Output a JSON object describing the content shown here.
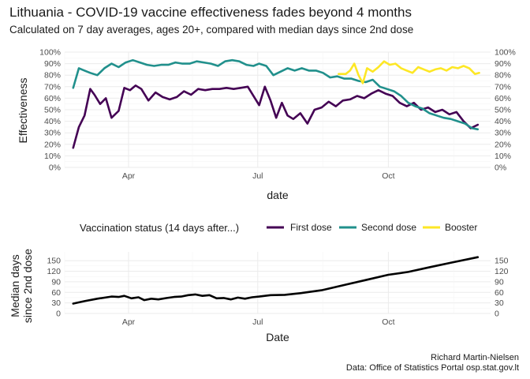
{
  "title": "Lithuania - COVID-19 vaccine effectiveness fades beyond 4 months",
  "subtitle": "Calculated on 7 day averages, ages 20+, compared with median days since 2nd dose",
  "caption_author": "Richard Martin-Nielsen",
  "caption_source": "Data: Office of Statistics Portal osp.stat.gov.lt",
  "colors": {
    "first_dose": "#440154",
    "second_dose": "#21908C",
    "booster": "#FDE725",
    "median": "#000000",
    "grid_major": "#ebebeb",
    "grid_minor": "#f5f5f5"
  },
  "chart_data": [
    {
      "type": "line",
      "ylabel": "Effectiveness",
      "xlabel": "date",
      "x_ticks": [
        "Apr",
        "Jul",
        "Oct"
      ],
      "y_ticks": [
        "0%",
        "10%",
        "20%",
        "30%",
        "40%",
        "50%",
        "60%",
        "70%",
        "80%",
        "90%",
        "100%"
      ],
      "ylim": [
        0,
        1
      ],
      "x_range": [
        "2021-02-15",
        "2021-12-12"
      ],
      "secondary_y_axis": true,
      "grid": true,
      "legend": {
        "title": "Vaccination status (14 days after...)",
        "position": "bottom",
        "entries": [
          "First dose",
          "Second dose",
          "Booster"
        ]
      },
      "series": [
        {
          "name": "First dose",
          "x": [
            "2021-02-21",
            "2021-02-25",
            "2021-03-01",
            "2021-03-05",
            "2021-03-08",
            "2021-03-12",
            "2021-03-16",
            "2021-03-20",
            "2021-03-25",
            "2021-03-29",
            "2021-04-02",
            "2021-04-06",
            "2021-04-10",
            "2021-04-15",
            "2021-04-20",
            "2021-04-25",
            "2021-04-30",
            "2021-05-05",
            "2021-05-10",
            "2021-05-15",
            "2021-05-20",
            "2021-05-25",
            "2021-05-30",
            "2021-06-04",
            "2021-06-09",
            "2021-06-14",
            "2021-06-19",
            "2021-06-24",
            "2021-06-29",
            "2021-07-02",
            "2021-07-06",
            "2021-07-10",
            "2021-07-14",
            "2021-07-18",
            "2021-07-22",
            "2021-07-26",
            "2021-07-31",
            "2021-08-05",
            "2021-08-10",
            "2021-08-15",
            "2021-08-20",
            "2021-08-25",
            "2021-08-30",
            "2021-09-04",
            "2021-09-09",
            "2021-09-14",
            "2021-09-19",
            "2021-09-24",
            "2021-09-29",
            "2021-10-04",
            "2021-10-09",
            "2021-10-14",
            "2021-10-19",
            "2021-10-24",
            "2021-10-29",
            "2021-11-03",
            "2021-11-08",
            "2021-11-13",
            "2021-11-18",
            "2021-11-23",
            "2021-11-28",
            "2021-12-03"
          ],
          "values": [
            0.17,
            0.35,
            0.45,
            0.68,
            0.63,
            0.55,
            0.6,
            0.43,
            0.49,
            0.69,
            0.67,
            0.71,
            0.68,
            0.58,
            0.65,
            0.61,
            0.59,
            0.61,
            0.66,
            0.63,
            0.68,
            0.67,
            0.68,
            0.68,
            0.69,
            0.68,
            0.69,
            0.7,
            0.6,
            0.54,
            0.7,
            0.58,
            0.43,
            0.56,
            0.45,
            0.42,
            0.47,
            0.38,
            0.5,
            0.52,
            0.57,
            0.53,
            0.58,
            0.59,
            0.62,
            0.6,
            0.64,
            0.67,
            0.64,
            0.62,
            0.56,
            0.53,
            0.56,
            0.5,
            0.52,
            0.48,
            0.5,
            0.46,
            0.48,
            0.4,
            0.34,
            0.37
          ]
        },
        {
          "name": "Second dose",
          "x": [
            "2021-02-21",
            "2021-02-25",
            "2021-03-01",
            "2021-03-05",
            "2021-03-10",
            "2021-03-15",
            "2021-03-20",
            "2021-03-25",
            "2021-03-30",
            "2021-04-04",
            "2021-04-09",
            "2021-04-14",
            "2021-04-19",
            "2021-04-24",
            "2021-04-29",
            "2021-05-04",
            "2021-05-09",
            "2021-05-14",
            "2021-05-19",
            "2021-05-24",
            "2021-05-29",
            "2021-06-03",
            "2021-06-08",
            "2021-06-13",
            "2021-06-18",
            "2021-06-23",
            "2021-06-28",
            "2021-07-02",
            "2021-07-07",
            "2021-07-12",
            "2021-07-17",
            "2021-07-22",
            "2021-07-27",
            "2021-08-01",
            "2021-08-06",
            "2021-08-11",
            "2021-08-16",
            "2021-08-21",
            "2021-08-26",
            "2021-08-31",
            "2021-09-05",
            "2021-09-10",
            "2021-09-15",
            "2021-09-20",
            "2021-09-25",
            "2021-09-30",
            "2021-10-05",
            "2021-10-10",
            "2021-10-15",
            "2021-10-20",
            "2021-10-25",
            "2021-10-30",
            "2021-11-04",
            "2021-11-09",
            "2021-11-14",
            "2021-11-19",
            "2021-11-24",
            "2021-11-29",
            "2021-12-03"
          ],
          "values": [
            0.69,
            0.86,
            0.84,
            0.82,
            0.8,
            0.86,
            0.9,
            0.87,
            0.91,
            0.93,
            0.91,
            0.89,
            0.88,
            0.89,
            0.89,
            0.91,
            0.9,
            0.9,
            0.92,
            0.91,
            0.9,
            0.88,
            0.92,
            0.93,
            0.92,
            0.89,
            0.88,
            0.9,
            0.88,
            0.8,
            0.83,
            0.86,
            0.84,
            0.86,
            0.84,
            0.84,
            0.82,
            0.78,
            0.79,
            0.77,
            0.77,
            0.75,
            0.74,
            0.76,
            0.7,
            0.68,
            0.66,
            0.62,
            0.56,
            0.53,
            0.51,
            0.47,
            0.45,
            0.43,
            0.42,
            0.4,
            0.38,
            0.34,
            0.33
          ]
        },
        {
          "name": "Booster",
          "x": [
            "2021-08-27",
            "2021-09-01",
            "2021-09-04",
            "2021-09-07",
            "2021-09-10",
            "2021-09-13",
            "2021-09-16",
            "2021-09-20",
            "2021-09-24",
            "2021-09-28",
            "2021-10-02",
            "2021-10-06",
            "2021-10-10",
            "2021-10-14",
            "2021-10-18",
            "2021-10-22",
            "2021-10-26",
            "2021-10-30",
            "2021-11-03",
            "2021-11-07",
            "2021-11-11",
            "2021-11-15",
            "2021-11-19",
            "2021-11-23",
            "2021-11-27",
            "2021-12-01",
            "2021-12-04"
          ],
          "values": [
            0.81,
            0.81,
            0.84,
            0.9,
            0.8,
            0.73,
            0.86,
            0.83,
            0.87,
            0.92,
            0.89,
            0.9,
            0.86,
            0.84,
            0.82,
            0.87,
            0.85,
            0.83,
            0.85,
            0.86,
            0.84,
            0.87,
            0.86,
            0.88,
            0.86,
            0.81,
            0.82
          ]
        }
      ]
    },
    {
      "type": "line",
      "ylabel_line1": "Median days",
      "ylabel_line2": "since 2nd dose",
      "xlabel": "Date",
      "x_ticks": [
        "Apr",
        "Jul",
        "Oct"
      ],
      "y_ticks": [
        "0",
        "30",
        "60",
        "90",
        "120",
        "150"
      ],
      "ylim": [
        0,
        175
      ],
      "x_range": [
        "2021-02-15",
        "2021-12-12"
      ],
      "secondary_y_axis": true,
      "grid": true,
      "series": [
        {
          "x": [
            "2021-02-21",
            "2021-03-01",
            "2021-03-10",
            "2021-03-20",
            "2021-03-25",
            "2021-03-29",
            "2021-04-03",
            "2021-04-08",
            "2021-04-12",
            "2021-04-17",
            "2021-04-22",
            "2021-04-28",
            "2021-05-03",
            "2021-05-08",
            "2021-05-13",
            "2021-05-18",
            "2021-05-23",
            "2021-05-28",
            "2021-06-02",
            "2021-06-07",
            "2021-06-12",
            "2021-06-17",
            "2021-06-22",
            "2021-06-27",
            "2021-07-02",
            "2021-07-10",
            "2021-07-20",
            "2021-08-01",
            "2021-08-15",
            "2021-09-01",
            "2021-09-15",
            "2021-10-01",
            "2021-10-15",
            "2021-11-01",
            "2021-11-15",
            "2021-12-03"
          ],
          "values": [
            28,
            35,
            42,
            48,
            47,
            50,
            43,
            46,
            38,
            42,
            40,
            44,
            47,
            48,
            52,
            54,
            50,
            52,
            43,
            44,
            40,
            45,
            42,
            46,
            48,
            52,
            53,
            58,
            66,
            82,
            95,
            110,
            118,
            133,
            145,
            160
          ]
        }
      ]
    }
  ]
}
